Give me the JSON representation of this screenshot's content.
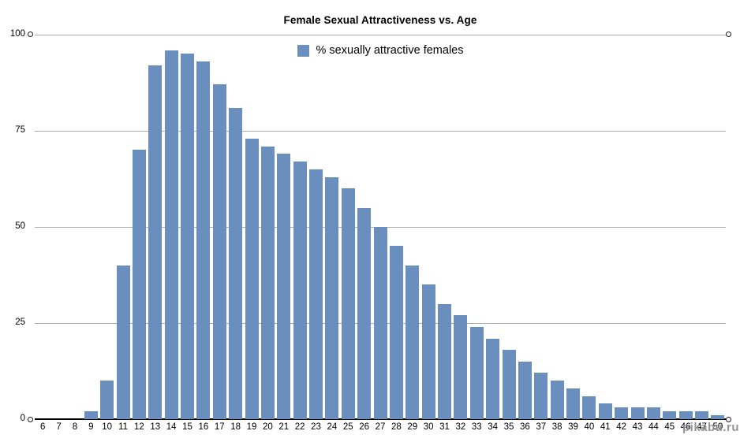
{
  "title": "Female Sexual Attractiveness vs. Age",
  "legend": {
    "label": "% sexually attractive females"
  },
  "watermark": "pikabu.ru",
  "colors": {
    "bar": "#6a8ebd",
    "gridline": "#ababab",
    "axis": "#000000",
    "marker_border": "#1a1a1a",
    "watermark": "#8d8d8d"
  },
  "y_axis": {
    "ticks": [
      100,
      75,
      50,
      25,
      0
    ]
  },
  "chart_data": {
    "type": "bar",
    "title": "Female Sexual Attractiveness vs. Age",
    "xlabel": "",
    "ylabel": "",
    "ylim": [
      0,
      100
    ],
    "grid": true,
    "gridline_step": 25,
    "legend_position": "top-center",
    "legend_entries": [
      "% sexually attractive females"
    ],
    "categories": [
      "6",
      "7",
      "8",
      "9",
      "10",
      "11",
      "12",
      "13",
      "14",
      "15",
      "16",
      "17",
      "18",
      "19",
      "20",
      "21",
      "22",
      "23",
      "24",
      "25",
      "26",
      "27",
      "28",
      "29",
      "30",
      "31",
      "32",
      "33",
      "34",
      "35",
      "36",
      "37",
      "38",
      "39",
      "40",
      "41",
      "42",
      "43",
      "44",
      "45",
      "46",
      "47",
      "50"
    ],
    "values": [
      0,
      0,
      0,
      2,
      10,
      40,
      70,
      92,
      96,
      95,
      93,
      87,
      81,
      73,
      71,
      69,
      67,
      65,
      63,
      60,
      55,
      50,
      45,
      40,
      35,
      30,
      27,
      24,
      21,
      18,
      15,
      12,
      10,
      8,
      6,
      4,
      3,
      3,
      3,
      2,
      2,
      2,
      1
    ]
  }
}
